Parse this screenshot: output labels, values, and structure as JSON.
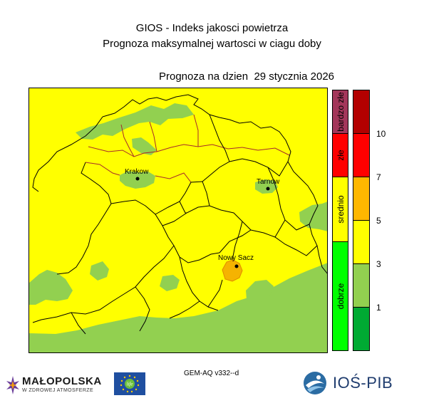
{
  "header": {
    "title": "GIOS - Indeks jakosci powietrza",
    "subtitle": "Prognoza maksymalnej wartosci w ciagu doby",
    "date_label": "Prognoza na dzien",
    "date_value": "29 stycznia 2026"
  },
  "map": {
    "cities": [
      {
        "name": "Krakow"
      },
      {
        "name": "Tarnow"
      },
      {
        "name": "Nowy Sacz"
      }
    ],
    "colors": {
      "yellow": "#ffff00",
      "green": "#92d050",
      "orange": "#f5b301",
      "borders": "#000000",
      "county_lines": "#a52a2a"
    }
  },
  "legend": {
    "categories": [
      {
        "label": "bardzo złe",
        "color": "#a3365a"
      },
      {
        "label": "złe",
        "color": "#ff0000"
      },
      {
        "label": "srednio",
        "color": "#ffff00"
      },
      {
        "label": "dobrze",
        "color": "#00ff00"
      }
    ],
    "scale_colors": [
      "#b30000",
      "#ff0000",
      "#ffb700",
      "#ffff00",
      "#92d050",
      "#00aa33"
    ],
    "ticks": [
      "10",
      "7",
      "5",
      "3",
      "1"
    ]
  },
  "footer": {
    "model": "GEM-AQ v332--d",
    "malopolska_logo": "MAŁOPOLSKA",
    "malopolska_tagline": "W ZDROWEJ ATMOSFERZE",
    "eu_logo": "life",
    "ios_logo": "IOŚ-PIB"
  }
}
